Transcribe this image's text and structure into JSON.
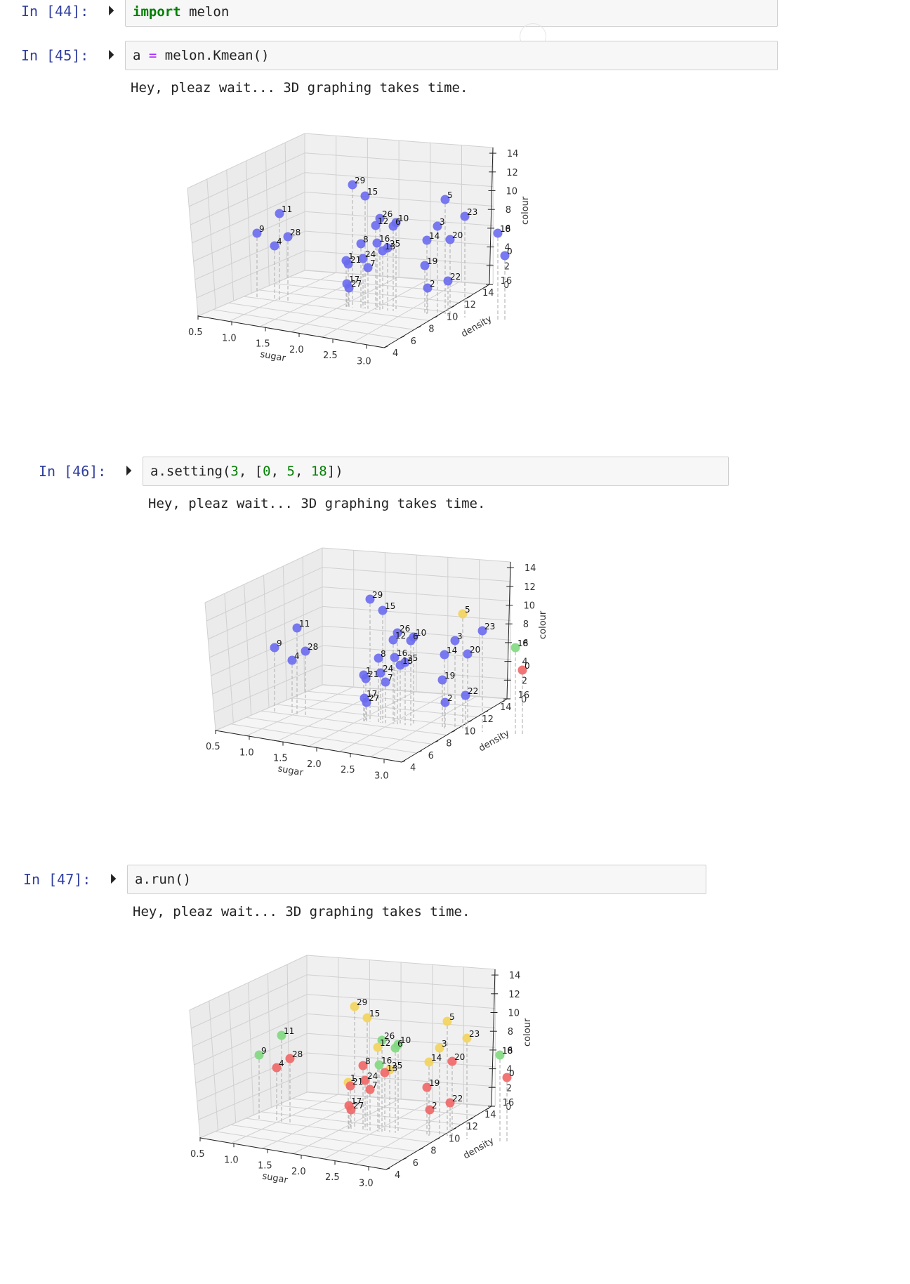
{
  "cells": [
    {
      "prompt": "In [44]:",
      "code_parts": [
        {
          "t": "import",
          "c": "kw"
        },
        {
          "t": " melon",
          "c": ""
        }
      ]
    },
    {
      "prompt": "In [45]:",
      "code_parts": [
        {
          "t": "a ",
          "c": ""
        },
        {
          "t": "=",
          "c": "op"
        },
        {
          "t": " melon.Kmean()",
          "c": ""
        }
      ],
      "output": "Hey, pleaz wait... 3D graphing takes time."
    },
    {
      "prompt": "In [46]:",
      "code_parts": [
        {
          "t": "a.setting(",
          "c": ""
        },
        {
          "t": "3",
          "c": "num"
        },
        {
          "t": ", [",
          "c": ""
        },
        {
          "t": "0",
          "c": "num"
        },
        {
          "t": ", ",
          "c": ""
        },
        {
          "t": "5",
          "c": "num"
        },
        {
          "t": ", ",
          "c": ""
        },
        {
          "t": "18",
          "c": "num"
        },
        {
          "t": "])",
          "c": ""
        }
      ],
      "output": "Hey, pleaz wait... 3D graphing takes time."
    },
    {
      "prompt": "In [47]:",
      "code_parts": [
        {
          "t": "a.run()",
          "c": ""
        }
      ],
      "output": "Hey, pleaz wait... 3D graphing takes time."
    }
  ],
  "axes": {
    "xlabel": "sugar",
    "ylabel": "density",
    "zlabel": "colour",
    "x_ticks": [
      "0.5",
      "1.0",
      "1.5",
      "2.0",
      "2.5",
      "3.0"
    ],
    "y_ticks": [
      "4",
      "6",
      "8",
      "10",
      "12",
      "14",
      "16"
    ],
    "z_ticks": [
      "0",
      "2",
      "4",
      "6",
      "8",
      "10",
      "12",
      "14"
    ]
  },
  "colors": {
    "blue": "#6a6af0",
    "yellow": "#f2d35a",
    "green": "#7fd87f",
    "red": "#f06666"
  },
  "chart_data": [
    {
      "type": "scatter",
      "point_labels": [
        "29",
        "15",
        "5",
        "11",
        "26",
        "10",
        "12",
        "6",
        "3",
        "23",
        "9",
        "28",
        "18",
        "4",
        "8",
        "16",
        "25",
        "13",
        "14",
        "20",
        "1",
        "24",
        "21",
        "7",
        "19",
        "0",
        "17",
        "27",
        "22",
        "2"
      ],
      "groups": [
        "blue",
        "blue",
        "blue",
        "blue",
        "blue",
        "blue",
        "blue",
        "blue",
        "blue",
        "blue",
        "blue",
        "blue",
        "blue",
        "blue",
        "blue",
        "blue",
        "blue",
        "blue",
        "blue",
        "blue",
        "blue",
        "blue",
        "blue",
        "blue",
        "blue",
        "blue",
        "blue",
        "blue",
        "blue",
        "blue"
      ]
    },
    {
      "type": "scatter",
      "point_labels": [
        "29",
        "15",
        "5",
        "11",
        "26",
        "10",
        "12",
        "6",
        "3",
        "23",
        "9",
        "28",
        "18",
        "4",
        "8",
        "16",
        "25",
        "13",
        "14",
        "20",
        "1",
        "24",
        "21",
        "7",
        "19",
        "0",
        "17",
        "27",
        "22",
        "2"
      ],
      "groups": [
        "blue",
        "blue",
        "yellow",
        "blue",
        "blue",
        "blue",
        "blue",
        "blue",
        "blue",
        "blue",
        "blue",
        "blue",
        "green",
        "blue",
        "blue",
        "blue",
        "blue",
        "blue",
        "blue",
        "blue",
        "blue",
        "blue",
        "blue",
        "blue",
        "blue",
        "red",
        "blue",
        "blue",
        "blue",
        "blue"
      ]
    },
    {
      "type": "scatter",
      "point_labels": [
        "29",
        "15",
        "5",
        "11",
        "26",
        "10",
        "12",
        "6",
        "3",
        "23",
        "9",
        "28",
        "18",
        "4",
        "8",
        "16",
        "25",
        "13",
        "14",
        "20",
        "1",
        "24",
        "21",
        "7",
        "19",
        "0",
        "17",
        "27",
        "22",
        "2"
      ],
      "groups": [
        "yellow",
        "yellow",
        "yellow",
        "green",
        "green",
        "green",
        "yellow",
        "green",
        "yellow",
        "yellow",
        "green",
        "red",
        "green",
        "red",
        "red",
        "green",
        "yellow",
        "red",
        "yellow",
        "red",
        "yellow",
        "red",
        "red",
        "red",
        "red",
        "red",
        "red",
        "red",
        "red",
        "red"
      ]
    }
  ]
}
